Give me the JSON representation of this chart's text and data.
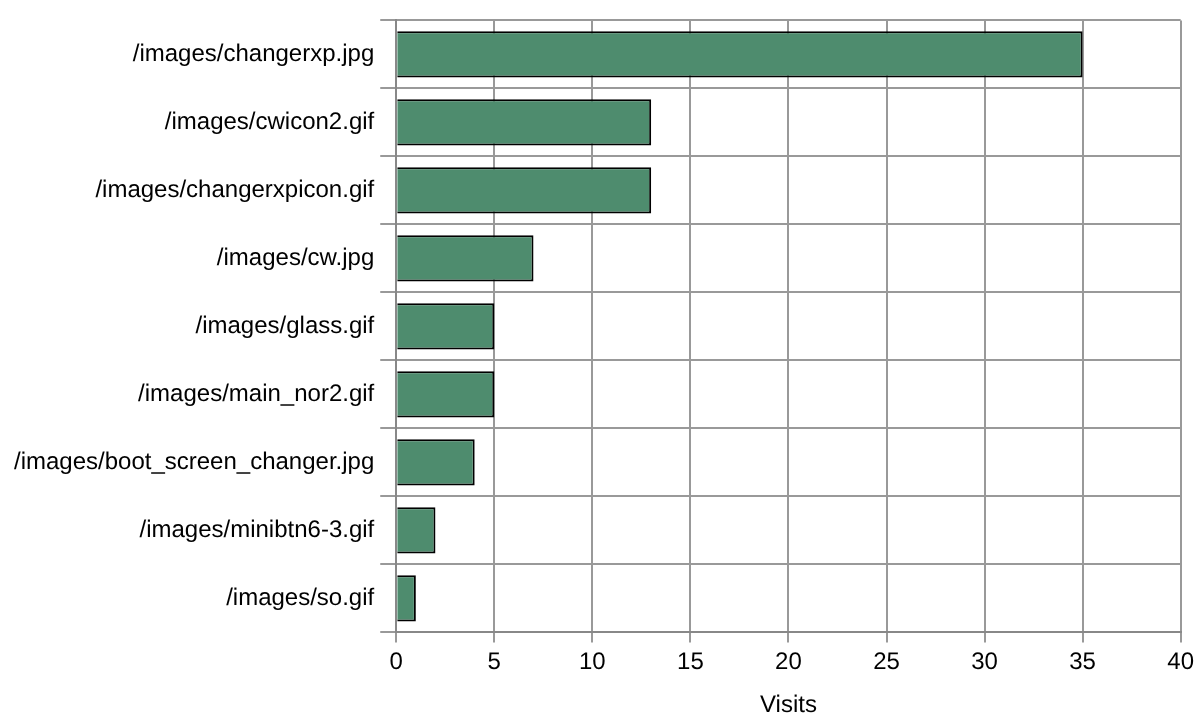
{
  "chart_data": {
    "type": "bar",
    "orientation": "horizontal",
    "xlabel": "Visits",
    "categories": [
      "/images/changerxp.jpg",
      "/images/cwicon2.gif",
      "/images/changerxpicon.gif",
      "/images/cw.jpg",
      "/images/glass.gif",
      "/images/main_nor2.gif",
      "/images/boot_screen_changer.jpg",
      "/images/minibtn6-3.gif",
      "/images/so.gif"
    ],
    "values": [
      35,
      13,
      13,
      7,
      5,
      5,
      4,
      2,
      1
    ],
    "color": "#4e8c6e",
    "xlim": [
      0,
      40
    ],
    "xticks": [
      0,
      5,
      10,
      15,
      20,
      25,
      30,
      35,
      40
    ],
    "grid": true
  }
}
